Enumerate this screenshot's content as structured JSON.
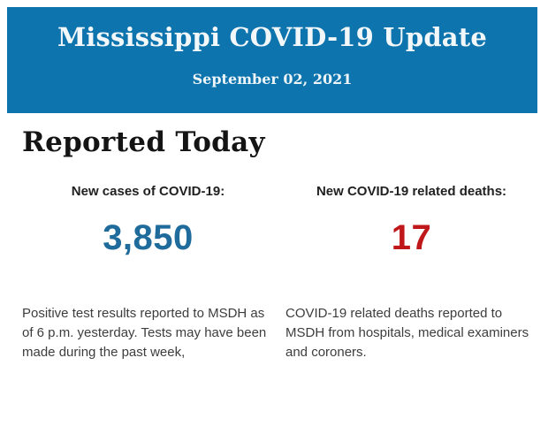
{
  "header": {
    "title": "Mississippi COVID-19 Update",
    "date": "September 02, 2021",
    "background_color": "#0e74ae",
    "text_color": "#f2f7fa"
  },
  "main": {
    "heading": "Reported Today",
    "stats": [
      {
        "label": "New cases of COVID-19:",
        "value": "3,850",
        "value_color": "#1e6b9c",
        "description": "Positive test results reported to MSDH as of 6 p.m. yesterday. Tests may have been made during the past week,"
      },
      {
        "label": "New COVID-19 related deaths:",
        "value": "17",
        "value_color": "#c0181a",
        "description": "COVID-19 related deaths reported to MSDH from hospitals, medical examiners and coroners."
      }
    ]
  }
}
